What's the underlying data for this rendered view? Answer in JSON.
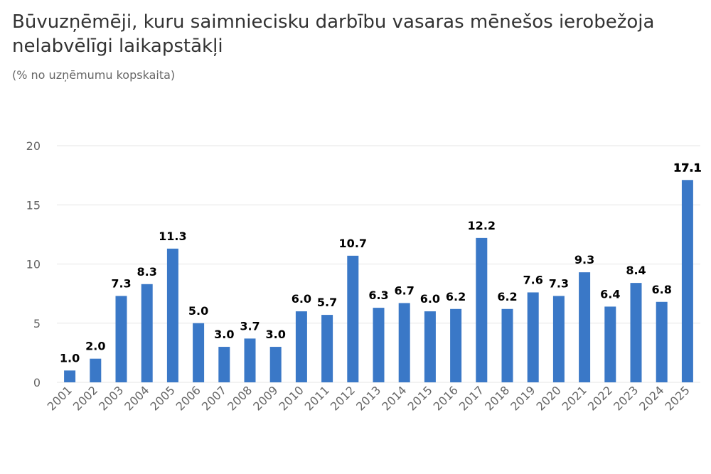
{
  "title": "Būvuzņēmēji, kuru saimniecisku darbību vasaras mēnešos ierobežoja nelabvēlīgi laikapstākļi",
  "subtitle": "(% no uzņēmumu kopskaita)",
  "colors": {
    "bar": "#3a78c7",
    "grid": "#e6e6e6",
    "axis_text": "#666666",
    "label": "#000000"
  },
  "chart_data": {
    "type": "bar",
    "categories": [
      "2001",
      "2002",
      "2003",
      "2004",
      "2005",
      "2006",
      "2007",
      "2008",
      "2009",
      "2010",
      "2011",
      "2012",
      "2013",
      "2014",
      "2015",
      "2016",
      "2017",
      "2018",
      "2019",
      "2020",
      "2021",
      "2022",
      "2023",
      "2024",
      "2025"
    ],
    "series": [
      {
        "values": [
          1.0,
          2.0,
          7.3,
          8.3,
          11.3,
          5.0,
          3.0,
          3.7,
          3.0,
          6.0,
          5.7,
          10.7,
          6.3,
          6.7,
          6.0,
          6.2,
          12.2,
          6.2,
          7.6,
          7.3,
          9.3,
          6.4,
          8.4,
          6.8,
          17.1
        ]
      }
    ],
    "data_labels": [
      "1.0",
      "2.0",
      "7.3",
      "8.3",
      "11.3",
      "5.0",
      "3.0",
      "3.7",
      "3.0",
      "6.0",
      "5.7",
      "10.7",
      "6.3",
      "6.7",
      "6.0",
      "6.2",
      "12.2",
      "6.2",
      "7.6",
      "7.3",
      "9.3",
      "6.4",
      "8.4",
      "6.8",
      "17.1"
    ],
    "title": "Būvuzņēmēji, kuru saimniecisku darbību vasaras mēnešos ierobežoja nelabvēlīgi laikapstākļi",
    "subtitle": "(% no uzņēmumu kopskaita)",
    "xlabel": "",
    "ylabel": "",
    "ylim": [
      0,
      20
    ],
    "yticks": [
      "0",
      "5",
      "10",
      "15",
      "20"
    ],
    "grid": true,
    "legend": "none"
  }
}
